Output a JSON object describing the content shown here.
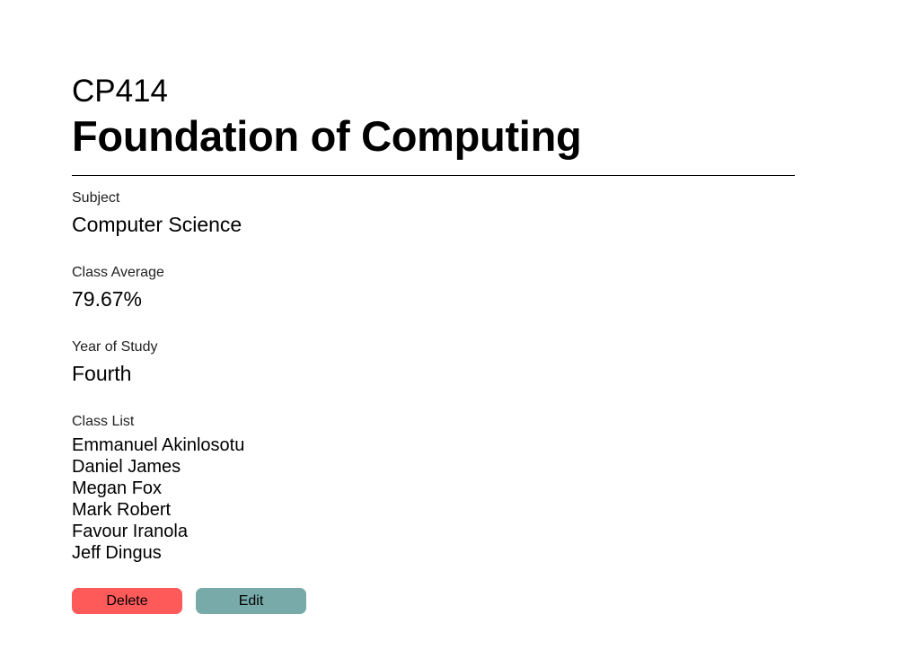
{
  "course": {
    "code": "CP414",
    "title": "Foundation of Computing"
  },
  "fields": {
    "subject": {
      "label": "Subject",
      "value": "Computer Science"
    },
    "class_average": {
      "label": "Class Average",
      "value": "79.67%"
    },
    "year_of_study": {
      "label": "Year of Study",
      "value": "Fourth"
    }
  },
  "class_list": {
    "label": "Class List",
    "students": [
      "Emmanuel Akinlosotu",
      "Daniel James",
      "Megan Fox",
      "Mark Robert",
      "Favour Iranola",
      "Jeff Dingus"
    ]
  },
  "actions": {
    "delete_label": "Delete",
    "edit_label": "Edit"
  },
  "colors": {
    "delete": "#ff5a5a",
    "edit": "#78aaaa"
  }
}
